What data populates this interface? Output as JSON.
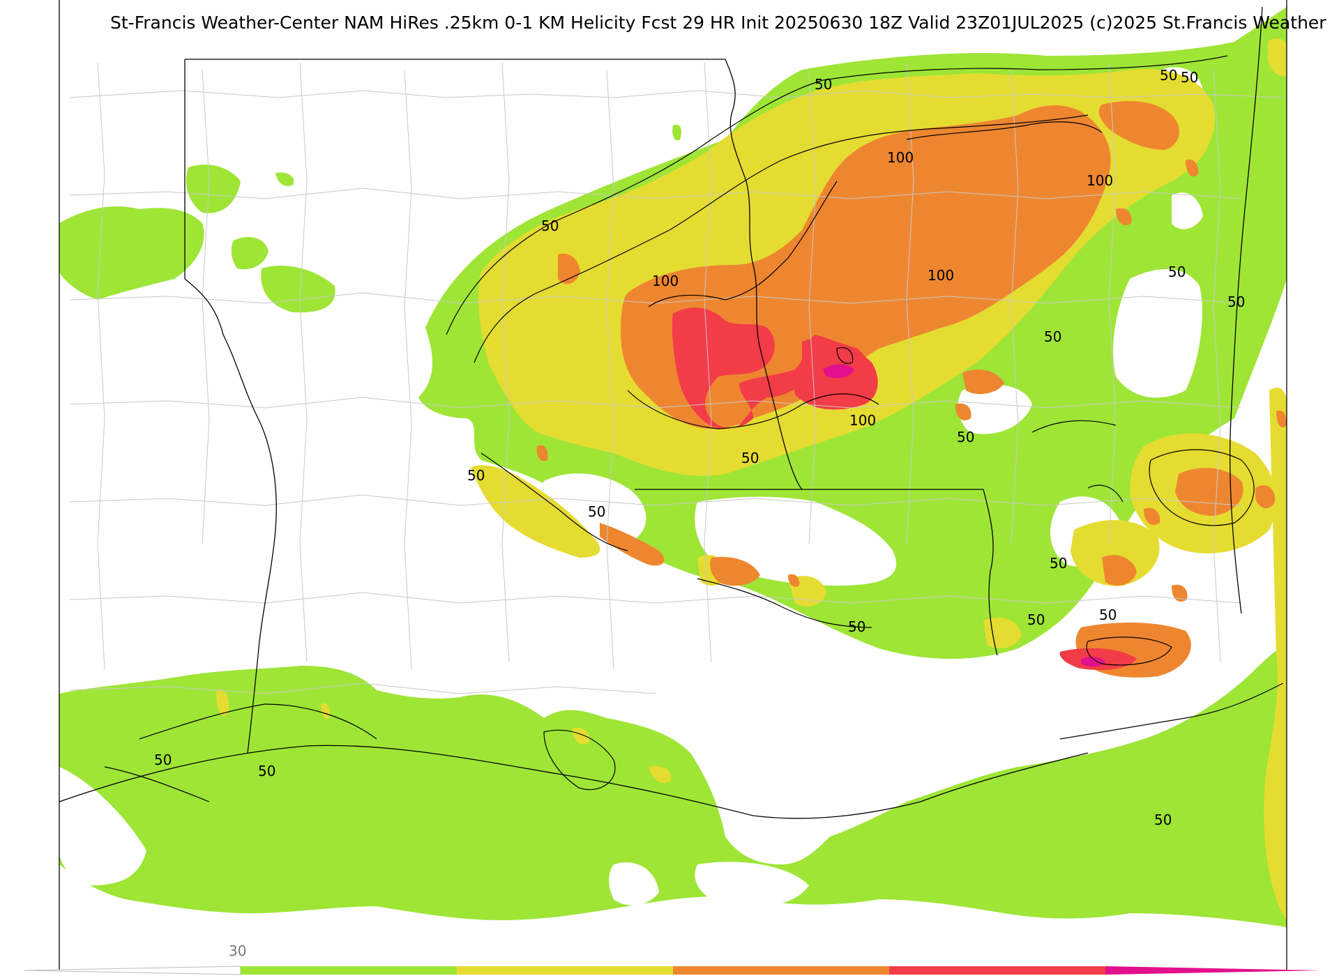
{
  "title": "St-Francis Weather-Center NAM HiRes .25km 0-1 KM Helicity Fcst 29 HR Init 20250630 18Z  Valid 23Z01JUL2025    (c)2025 St.Francis Weather",
  "contour_labels": [
    "50",
    "50",
    "50",
    "50",
    "50",
    "50",
    "50",
    "50",
    "50",
    "50",
    "50",
    "50",
    "50",
    "50",
    "50",
    "50",
    "50",
    "50",
    "100",
    "100",
    "100",
    "100",
    "100"
  ],
  "colorbar": {
    "tick_label": "30",
    "colors": [
      "#9ee536",
      "#e5dc31",
      "#ee8630",
      "#f23c47",
      "#e2108c"
    ]
  },
  "fill_colors": {
    "low": "#9ee536",
    "moderate": "#e5dc31",
    "elevated": "#ee8630",
    "high": "#f23c47",
    "extreme": "#e2108c"
  }
}
